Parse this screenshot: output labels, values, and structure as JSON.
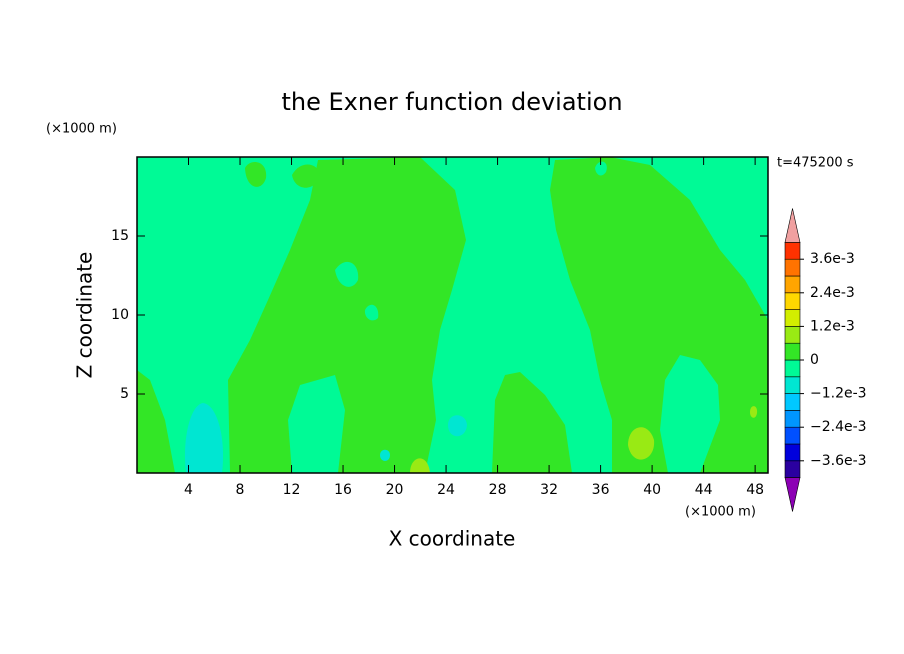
{
  "chart_data": {
    "type": "contour",
    "title": "the Exner function deviation",
    "x_label": "X coordinate",
    "y_label": "Z coordinate",
    "x_unit": "(×1000 m)",
    "y_unit": "(×1000 m)",
    "time_label": "t=475200 s",
    "xlim": [
      0,
      49
    ],
    "ylim": [
      0,
      20
    ],
    "xticks": [
      4,
      8,
      12,
      16,
      20,
      24,
      28,
      32,
      36,
      40,
      44,
      48
    ],
    "yticks": [
      5,
      10,
      15
    ],
    "levels": [
      -0.0042,
      -0.0036,
      -0.003,
      -0.0024,
      -0.0018,
      -0.0012,
      -0.0006,
      0,
      0.0006,
      0.0012,
      0.0018,
      0.0024,
      0.003,
      0.0036,
      0.0042
    ],
    "colors": [
      "#2a00a0",
      "#0000dc",
      "#0050ff",
      "#0096ff",
      "#00c8ff",
      "#00e6d2",
      "#00fa96",
      "#33e626",
      "#99ea14",
      "#d2ee00",
      "#ffd700",
      "#ffa500",
      "#ff7300",
      "#ff3200"
    ],
    "extend_colors": [
      "#8c00b4",
      "#f0a0a0"
    ],
    "colorbar_ticks": [
      {
        "value": 0.0036,
        "label": "3.6e-3"
      },
      {
        "value": 0.0024,
        "label": "2.4e-3"
      },
      {
        "value": 0.0012,
        "label": "1.2e-3"
      },
      0,
      {
        "value": -0.0012,
        "label": "−1.2e-3"
      },
      {
        "value": -0.0024,
        "label": "−2.4e-3"
      },
      {
        "value": -0.0036,
        "label": "−3.6e-3"
      }
    ]
  }
}
